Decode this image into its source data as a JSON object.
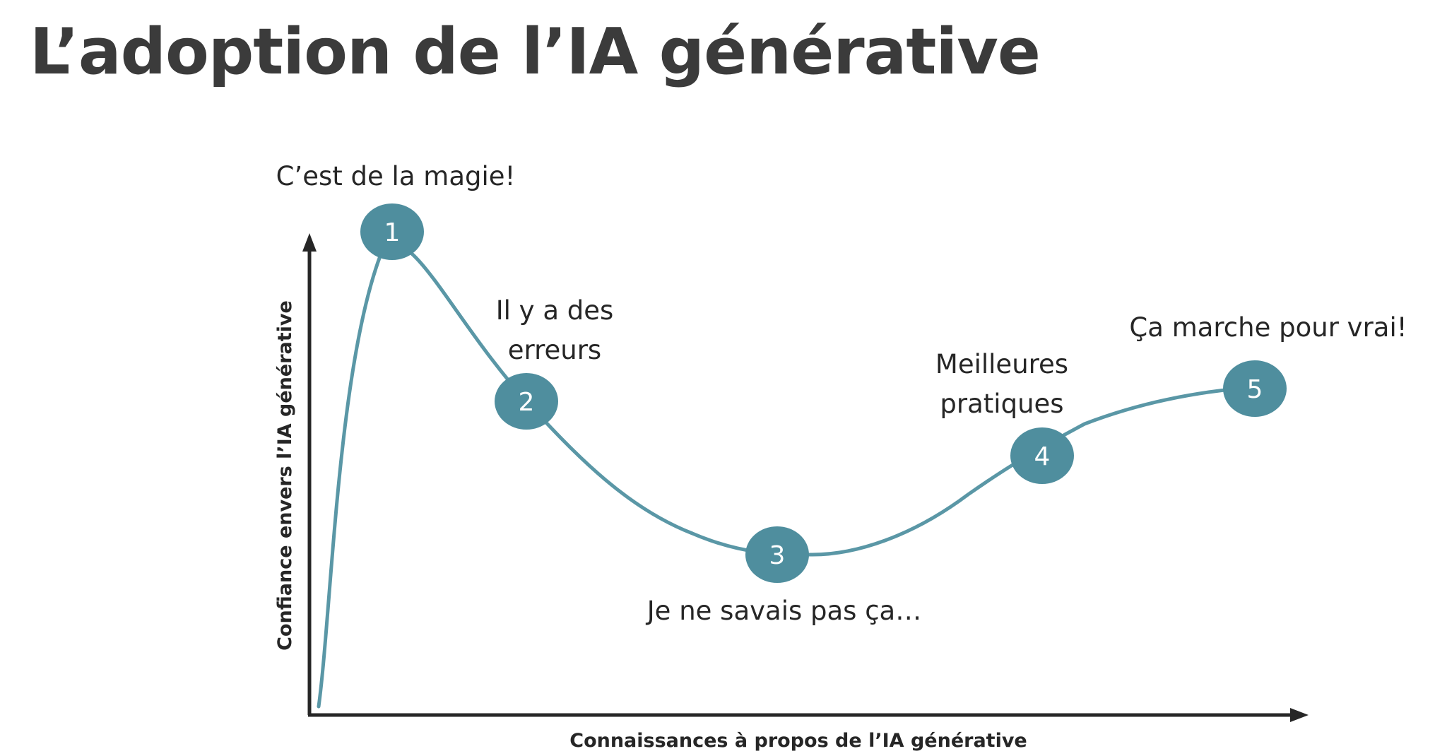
{
  "title": "L’adoption de l’IA générative",
  "axes": {
    "x_label": "Connaissances à propos de l’IA générative",
    "y_label": "Confiance envers l’IA générative"
  },
  "stages": [
    {
      "number": "1",
      "lines": [
        "C’est de la magie!"
      ]
    },
    {
      "number": "2",
      "lines": [
        "Il y a des",
        "erreurs"
      ]
    },
    {
      "number": "3",
      "lines": [
        "Je ne savais pas ça…"
      ]
    },
    {
      "number": "4",
      "lines": [
        "Meilleures",
        "pratiques"
      ]
    },
    {
      "number": "5",
      "lines": [
        "Ça marche pour vrai!"
      ]
    }
  ],
  "colors": {
    "title": "#3b3b3b",
    "text": "#262626",
    "curve": "#5a97a6",
    "marker": "#4f8e9e",
    "marker_text": "#ffffff",
    "axis": "#262626"
  }
}
